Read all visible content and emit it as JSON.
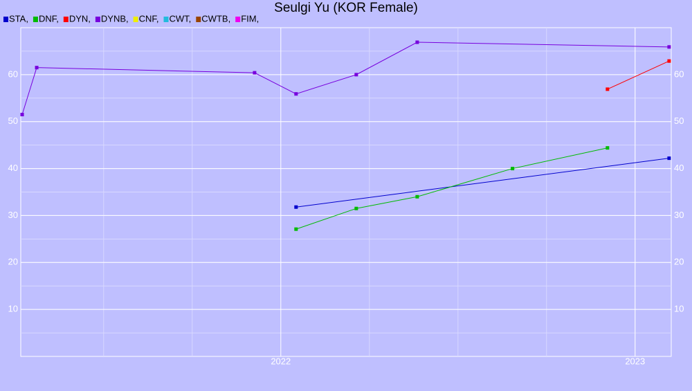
{
  "chart_data": {
    "type": "line",
    "title": "Seulgi Yu (KOR Female)",
    "xlim": [
      2021.266,
      2023.102
    ],
    "xticks": [
      2022,
      2023
    ],
    "ylim": [
      0,
      70
    ],
    "yticks": [
      10,
      20,
      30,
      40,
      50,
      60
    ],
    "grid": true,
    "series": [
      {
        "name": "STA,",
        "color": "#0000cc",
        "x": [
          2022.043,
          2023.096
        ],
        "values": [
          31.8,
          42.2
        ]
      },
      {
        "name": "DNF,",
        "color": "#00bb00",
        "x": [
          2022.043,
          2022.213,
          2022.385,
          2022.654,
          2022.922
        ],
        "values": [
          27.1,
          31.5,
          34.0,
          40.0,
          44.4
        ]
      },
      {
        "name": "DYN,",
        "color": "#ff0000",
        "x": [
          2022.922,
          2023.096
        ],
        "values": [
          56.9,
          62.9
        ]
      },
      {
        "name": "DYNB,",
        "color": "#7700dd",
        "x": [
          2021.27,
          2021.311,
          2021.926,
          2022.043,
          2022.213,
          2022.385,
          2023.096
        ],
        "values": [
          51.5,
          61.5,
          60.4,
          55.9,
          60.0,
          66.9,
          65.9
        ]
      },
      {
        "name": "CNF,",
        "color": "#eeee00",
        "x": [],
        "values": []
      },
      {
        "name": "CWT,",
        "color": "#22bbdd",
        "x": [],
        "values": []
      },
      {
        "name": "CWTB,",
        "color": "#994400",
        "x": [],
        "values": []
      },
      {
        "name": "FIM,",
        "color": "#ee00ee",
        "x": [],
        "values": []
      }
    ]
  }
}
